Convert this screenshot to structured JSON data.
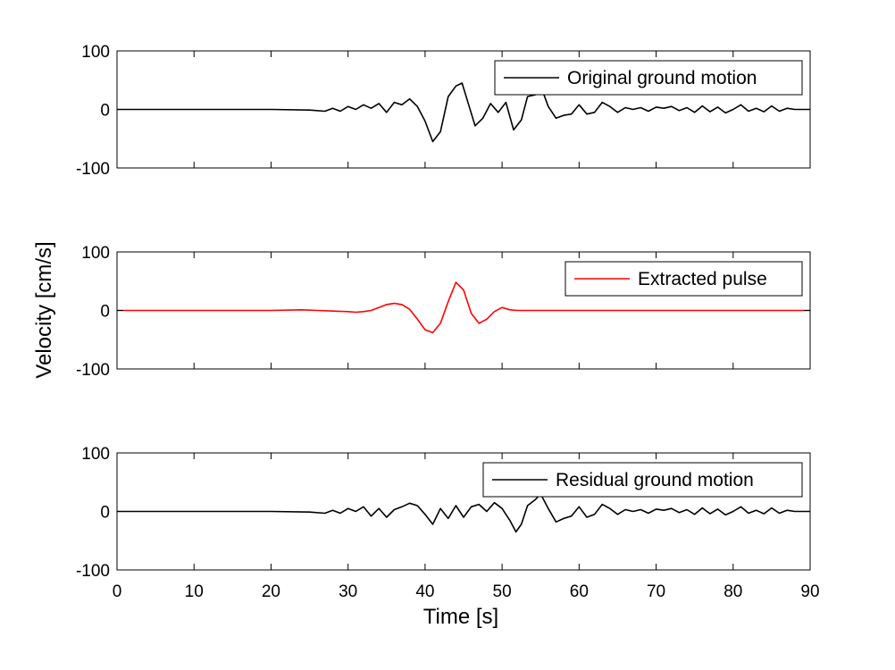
{
  "figure": {
    "ylabel": "Velocity [cm/s]",
    "xlabel": "Time [s]"
  },
  "chart_data": [
    {
      "type": "line",
      "title": "",
      "xlim": [
        0,
        90
      ],
      "ylim": [
        -100,
        100
      ],
      "yticks": [
        -100,
        0,
        100
      ],
      "xticks": [],
      "grid": false,
      "legend": "top-right",
      "series": [
        {
          "name": "Original ground motion",
          "color": "#000000",
          "x": [
            0,
            10,
            20,
            25,
            27,
            28,
            29,
            30,
            31,
            32,
            33,
            34,
            35,
            36,
            37,
            38,
            39,
            40,
            41,
            42,
            43,
            44,
            44.8,
            45.5,
            46.5,
            47.5,
            48.5,
            49.5,
            50.5,
            51.5,
            52.5,
            53.3,
            54.3,
            55.3,
            56,
            57,
            58,
            59,
            60,
            61,
            62,
            63,
            64,
            65,
            66,
            67,
            68,
            69,
            70,
            71,
            72,
            73,
            74,
            75,
            76,
            77,
            78,
            79,
            80,
            81,
            82,
            83,
            84,
            85,
            86,
            87,
            88,
            90
          ],
          "y": [
            0,
            0,
            0,
            -1,
            -3,
            2,
            -3,
            5,
            0,
            8,
            2,
            10,
            -5,
            12,
            8,
            18,
            5,
            -20,
            -55,
            -38,
            22,
            40,
            45,
            15,
            -28,
            -15,
            10,
            -5,
            12,
            -35,
            -18,
            22,
            25,
            30,
            5,
            -15,
            -10,
            -8,
            8,
            -8,
            -5,
            12,
            5,
            -5,
            3,
            0,
            3,
            -3,
            4,
            2,
            5,
            -2,
            3,
            -5,
            6,
            -4,
            4,
            -6,
            0,
            8,
            -3,
            2,
            -4,
            6,
            -3,
            2,
            0,
            0
          ]
        }
      ]
    },
    {
      "type": "line",
      "title": "",
      "xlim": [
        0,
        90
      ],
      "ylim": [
        -100,
        100
      ],
      "yticks": [
        -100,
        0,
        100
      ],
      "xticks": [],
      "grid": false,
      "legend": "top-right",
      "series": [
        {
          "name": "Extracted pulse",
          "color": "#ff0000",
          "x": [
            0,
            10,
            20,
            24,
            26,
            28,
            30,
            31,
            32,
            33,
            34,
            35,
            36,
            37,
            38,
            39,
            40,
            41,
            42,
            43,
            44,
            45,
            46,
            47,
            48,
            49,
            50,
            51,
            52,
            53,
            55,
            60,
            70,
            80,
            90
          ],
          "y": [
            0,
            0,
            0,
            1,
            0,
            -1,
            -2,
            -3,
            -2,
            0,
            5,
            10,
            12,
            10,
            2,
            -15,
            -33,
            -38,
            -22,
            15,
            48,
            35,
            -5,
            -22,
            -15,
            -2,
            5,
            1,
            0,
            0,
            0,
            0,
            0,
            0,
            0
          ]
        }
      ]
    },
    {
      "type": "line",
      "title": "",
      "xlim": [
        0,
        90
      ],
      "ylim": [
        -100,
        100
      ],
      "yticks": [
        -100,
        0,
        100
      ],
      "xticks": [
        0,
        10,
        20,
        30,
        40,
        50,
        60,
        70,
        80,
        90
      ],
      "grid": false,
      "legend": "top-right",
      "series": [
        {
          "name": "Residual ground motion",
          "color": "#000000",
          "x": [
            0,
            10,
            20,
            25,
            27,
            28,
            29,
            30,
            31,
            32,
            33,
            34,
            35,
            36,
            37,
            38,
            39,
            40,
            41,
            42,
            43,
            44,
            45,
            46,
            47,
            48,
            49,
            50,
            51,
            51.8,
            52.5,
            53.3,
            54.3,
            55,
            56,
            57,
            58,
            59,
            60,
            61,
            62,
            63,
            64,
            65,
            66,
            67,
            68,
            69,
            70,
            71,
            72,
            73,
            74,
            75,
            76,
            77,
            78,
            79,
            80,
            81,
            82,
            83,
            84,
            85,
            86,
            87,
            88,
            90
          ],
          "y": [
            0,
            0,
            0,
            -1,
            -3,
            2,
            -3,
            5,
            0,
            8,
            -8,
            5,
            -10,
            3,
            8,
            14,
            10,
            -5,
            -22,
            5,
            -12,
            10,
            -10,
            8,
            12,
            0,
            15,
            5,
            -15,
            -35,
            -22,
            10,
            20,
            30,
            5,
            -18,
            -12,
            -8,
            8,
            -10,
            -5,
            12,
            5,
            -5,
            3,
            0,
            3,
            -3,
            4,
            2,
            5,
            -2,
            3,
            -5,
            6,
            -4,
            4,
            -6,
            0,
            8,
            -3,
            2,
            -4,
            6,
            -3,
            2,
            0,
            0
          ]
        }
      ]
    }
  ]
}
